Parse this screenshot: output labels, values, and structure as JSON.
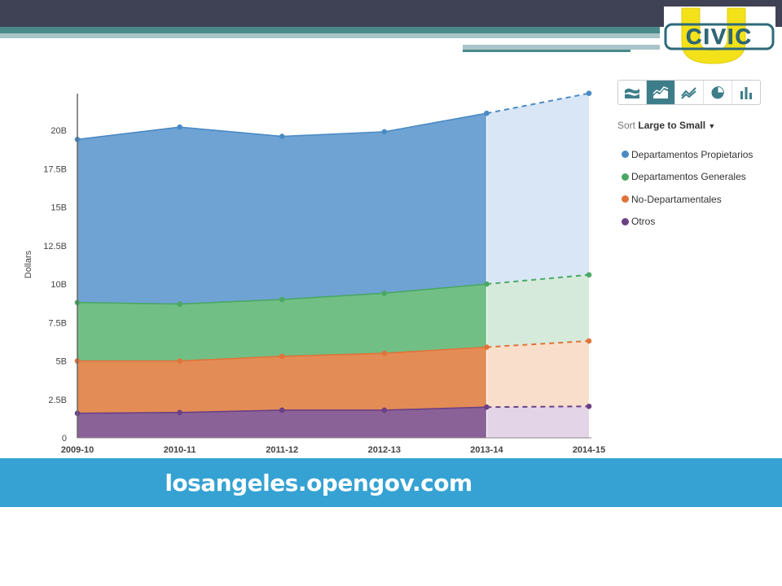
{
  "colors": {
    "topbar": "#3f4154",
    "accent_teal": "#4a8a8a",
    "footer": "#35a2d3",
    "active_control": "#3d7d8a"
  },
  "logo": {
    "text": "CIVIC",
    "letter": "U"
  },
  "controls": [
    {
      "icon": "stacked-area-icon",
      "active": false
    },
    {
      "icon": "area-chart-icon",
      "active": true
    },
    {
      "icon": "line-chart-icon",
      "active": false
    },
    {
      "icon": "pie-chart-icon",
      "active": false
    },
    {
      "icon": "bar-chart-icon",
      "active": false
    }
  ],
  "sort": {
    "prefix": "Sort",
    "value": "Large to Small"
  },
  "footer": {
    "text": "losangeles.opengov.com"
  },
  "chart_data": {
    "type": "area",
    "stacked": true,
    "ylabel": "Dollars",
    "ylim": [
      0,
      22.5
    ],
    "yticks": [
      {
        "v": 0,
        "label": "0"
      },
      {
        "v": 2.5,
        "label": "2.5B"
      },
      {
        "v": 5,
        "label": "5B"
      },
      {
        "v": 7.5,
        "label": "7.5B"
      },
      {
        "v": 10,
        "label": "10B"
      },
      {
        "v": 12.5,
        "label": "12.5B"
      },
      {
        "v": 15,
        "label": "15B"
      },
      {
        "v": 17.5,
        "label": "17.5B"
      },
      {
        "v": 20,
        "label": "20B"
      }
    ],
    "categories": [
      "2009-10",
      "2010-11",
      "2011-12",
      "2012-13",
      "2013-14",
      "2014-15"
    ],
    "projected_from_index": 4,
    "series": [
      {
        "name": "Departamentos Propietarios",
        "color": "#4a8ac4",
        "fill": "#6fa3d3",
        "light": "#d8e6f6",
        "cumulative": [
          19.4,
          20.2,
          19.6,
          19.9,
          21.1,
          22.4
        ]
      },
      {
        "name": "Departamentos Generales",
        "color": "#4aa864",
        "fill": "#72bf85",
        "light": "#d6eadb",
        "cumulative": [
          8.8,
          8.7,
          9.0,
          9.4,
          10.0,
          10.6
        ]
      },
      {
        "name": "No-Departamentales",
        "color": "#e0733a",
        "fill": "#e48c56",
        "light": "#f9dfcb",
        "cumulative": [
          5.0,
          5.0,
          5.3,
          5.5,
          5.9,
          6.3
        ]
      },
      {
        "name": "Otros",
        "color": "#6b3f84",
        "fill": "#8a6297",
        "light": "#e3d5e7",
        "cumulative": [
          1.6,
          1.65,
          1.8,
          1.8,
          2.0,
          2.05
        ]
      }
    ]
  }
}
